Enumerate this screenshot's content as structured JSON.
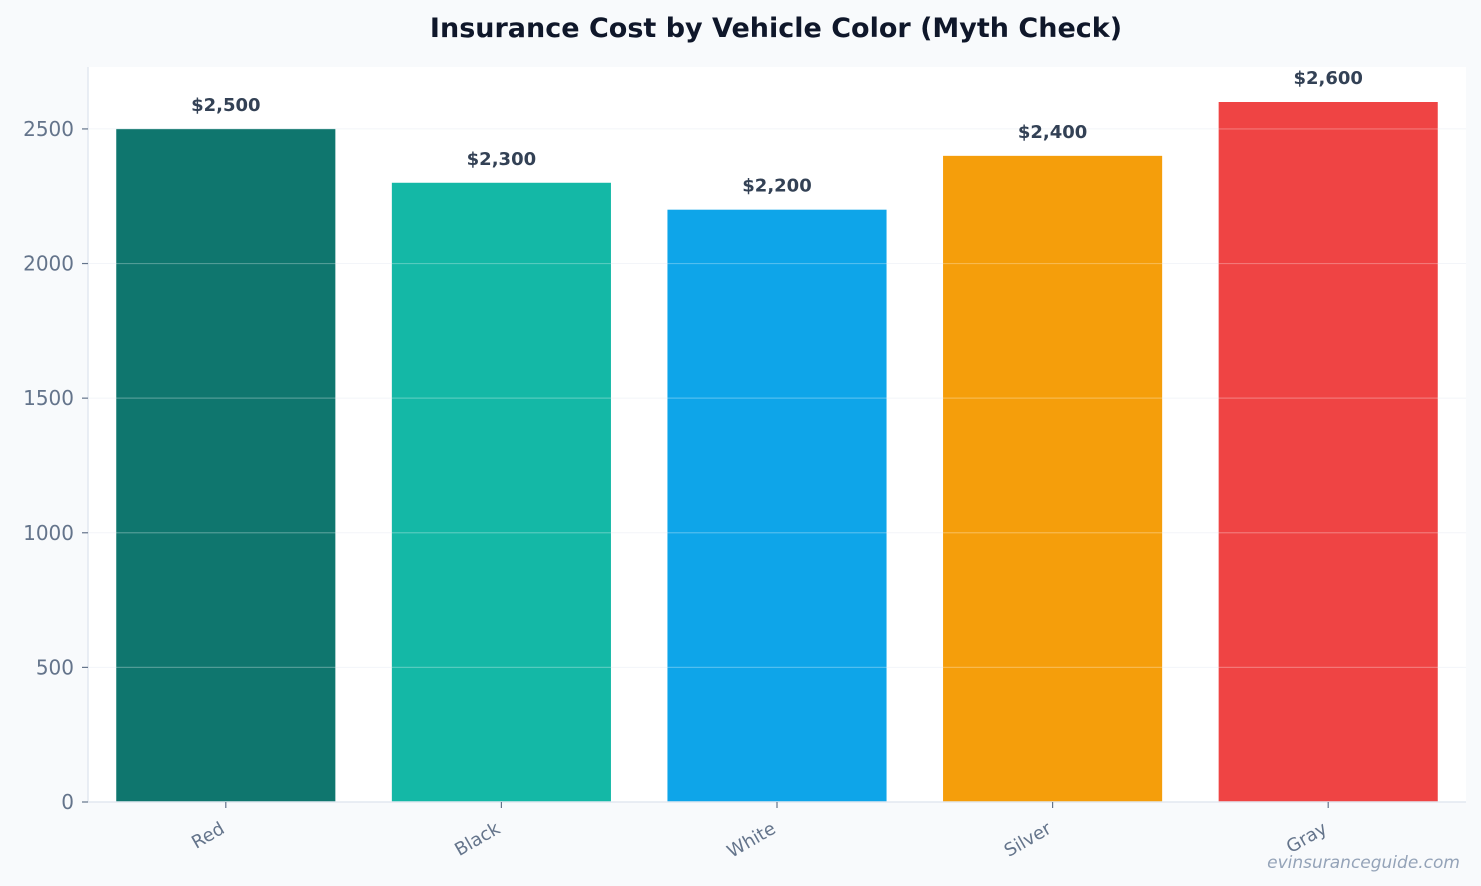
{
  "chart_data": {
    "type": "bar",
    "title": "Insurance Cost by Vehicle Color (Myth Check)",
    "xlabel": "",
    "ylabel": "",
    "categories": [
      "Red",
      "Black",
      "White",
      "Silver",
      "Gray"
    ],
    "values": [
      2500,
      2300,
      2200,
      2400,
      2600
    ],
    "data_labels": [
      "$2,500",
      "$2,300",
      "$2,200",
      "$2,400",
      "$2,600"
    ],
    "colors": [
      "#0f766e",
      "#14b8a6",
      "#0ea5e9",
      "#f59e0b",
      "#ef4444"
    ],
    "yticks": [
      0,
      500,
      1000,
      1500,
      2000,
      2500
    ],
    "ylim": [
      0,
      2730
    ],
    "grid": true,
    "legend": "none"
  },
  "watermark": "evinsuranceguide.com"
}
